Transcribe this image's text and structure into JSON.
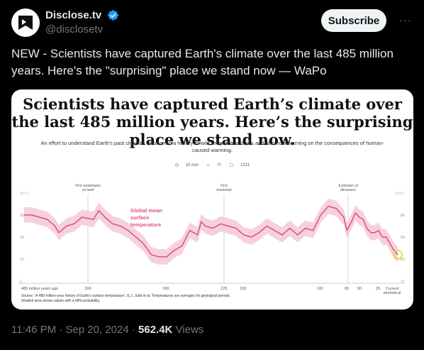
{
  "author": {
    "name": "Disclose.tv",
    "handle": "@disclosetv",
    "subscribe_label": "Subscribe",
    "more_label": "···"
  },
  "tweet": {
    "text": "NEW - Scientists have captured Earth's climate over the last 485 million years. Here's the \"surprising\" place we stand now — WaPo"
  },
  "article": {
    "headline": "Scientists have captured Earth’s climate over the last 485 million years. Here’s the surprising place we stand now.",
    "subhead": "An effort to understand Earth’s past climates uncovered a history of wild temperature shifts and offered a warning on the consequences of human-caused warming.",
    "read_time": "10 min",
    "comment_count": "1321",
    "source_note": "Source: “A 485-million-year history of Earth’s surface temperature”, E.J. Judd et al. Temperatures are averages for geological periods. Shaded area shows values with a 68% probability."
  },
  "chart_data": {
    "type": "line",
    "series": [
      {
        "name": "",
        "x": [
          485,
          475,
          465,
          455,
          445,
          440,
          430,
          420,
          410,
          395,
          388,
          380,
          370,
          360,
          350,
          340,
          330,
          320,
          310,
          300,
          290,
          280,
          270,
          260,
          255,
          250,
          240,
          230,
          220,
          210,
          200,
          190,
          180,
          170,
          160,
          150,
          140,
          130,
          120,
          110,
          100,
          90,
          80,
          70,
          66,
          60,
          55,
          50,
          45,
          40,
          35,
          30,
          25,
          20,
          15,
          10,
          5,
          0
        ],
        "y": [
          31,
          31,
          30,
          29,
          26,
          23,
          26,
          27,
          30,
          29,
          33,
          30,
          27,
          26,
          24,
          21,
          18,
          13,
          12,
          12,
          15,
          17,
          24,
          22,
          28,
          26,
          25,
          27,
          26,
          25,
          22,
          21,
          23,
          26,
          24,
          22,
          25,
          22,
          25,
          24,
          31,
          35,
          34,
          30,
          24,
          28,
          32,
          30,
          29,
          25,
          23,
          23,
          24,
          21,
          21,
          18,
          15,
          13
        ]
      }
    ],
    "yticks_c": [
      "40°C",
      "30",
      "20",
      "10",
      "0"
    ],
    "yticks_f": [
      "104°F",
      "86",
      "68",
      "50",
      "32"
    ],
    "xticks": [
      "485 million years ago",
      "300",
      "300",
      "225",
      "200",
      "100",
      "65",
      "50",
      "25",
      "Current geological stage"
    ],
    "xlim": [
      485,
      0
    ],
    "ylim": [
      0,
      40
    ],
    "series_label": "Global mean surface temperature",
    "annotations": [
      "First vertebrates on land",
      "First mammals",
      "Extinction of dinosaurs"
    ],
    "grid": false
  },
  "stats": {
    "time": "11:46 PM · Sep 20, 2024 ·",
    "views_count": "562.4K",
    "views_label": "Views"
  },
  "colors": {
    "background": "#000000",
    "line": "#d6537a",
    "band": "#f4c9d6",
    "highlight": "#e6d836"
  }
}
